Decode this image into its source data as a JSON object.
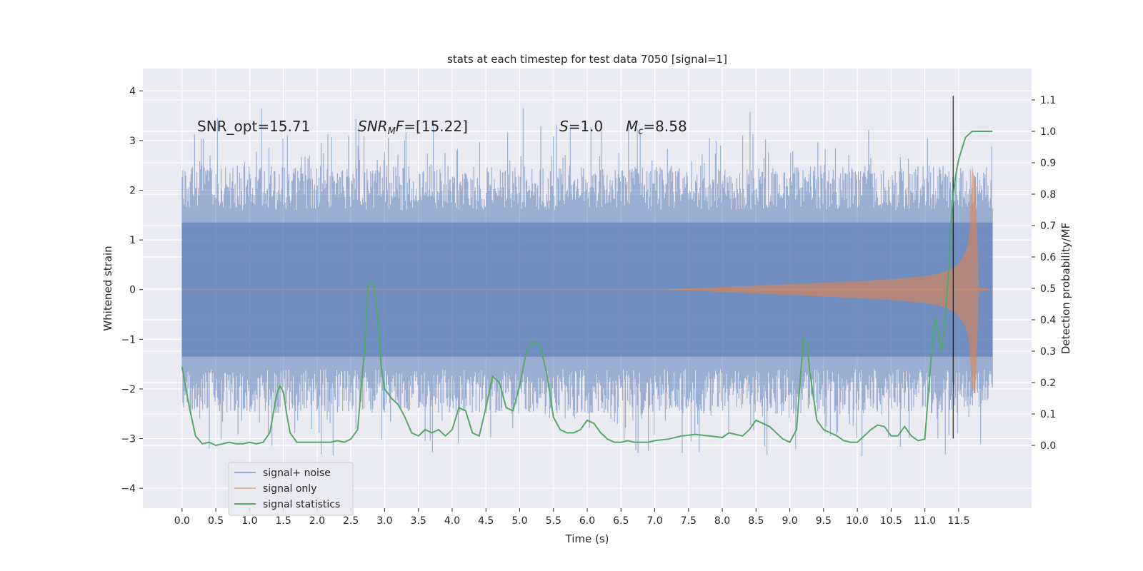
{
  "chart_data": {
    "type": "line",
    "title": "stats at each timestep for test data 7050 [signal=1]",
    "xlabel": "Time (s)",
    "ylabel_left": "Whitened strain",
    "ylabel_right": "Detection probability/MF",
    "xlim": [
      -0.58,
      12.58
    ],
    "ylim_left": [
      -4.4,
      4.45
    ],
    "ylim_right": [
      -0.2,
      1.2
    ],
    "x_ticks": [
      0.0,
      0.5,
      1.0,
      1.5,
      2.0,
      2.5,
      3.0,
      3.5,
      4.0,
      4.5,
      5.0,
      5.5,
      6.0,
      6.5,
      7.0,
      7.5,
      8.0,
      8.5,
      9.0,
      9.5,
      10.0,
      10.5,
      11.0,
      11.5
    ],
    "x_tick_labels": [
      "0.0",
      "0.5",
      "1.0",
      "1.5",
      "2.0",
      "2.5",
      "3.0",
      "3.5",
      "4.0",
      "4.5",
      "5.0",
      "5.5",
      "6.0",
      "6.5",
      "7.0",
      "7.5",
      "8.0",
      "8.5",
      "9.0",
      "9.5",
      "10.0",
      "10.5",
      "11.0",
      "11.5"
    ],
    "y_left_ticks": [
      -4,
      -3,
      -2,
      -1,
      0,
      1,
      2,
      3,
      4
    ],
    "y_left_tick_labels": [
      "−4",
      "−3",
      "−2",
      "−1",
      "0",
      "1",
      "2",
      "3",
      "4"
    ],
    "y_right_ticks": [
      0.0,
      0.1,
      0.2,
      0.3,
      0.4,
      0.5,
      0.6,
      0.7,
      0.8,
      0.9,
      1.0,
      1.1
    ],
    "y_right_tick_labels": [
      "0.0",
      "0.1",
      "0.2",
      "0.3",
      "0.4",
      "0.5",
      "0.6",
      "0.7",
      "0.8",
      "0.9",
      "1.0",
      "1.1"
    ],
    "grid": true,
    "legend_position": "bottom-left",
    "series": [
      {
        "name": "signal+ noise",
        "axis": "left",
        "color": "#4c72b0",
        "x_range": [
          0.0,
          12.0
        ],
        "core_envelope": [
          -1.35,
          1.35
        ],
        "typical_extent": [
          -2.3,
          2.3
        ],
        "max": 4.1,
        "min": -3.8
      },
      {
        "name": "signal only",
        "axis": "left",
        "color": "#dd8452",
        "envelope": {
          "x": [
            0.0,
            7.0,
            7.5,
            8.0,
            8.5,
            9.0,
            9.5,
            10.0,
            10.5,
            11.0,
            11.2,
            11.4,
            11.5,
            11.6,
            11.65,
            11.7,
            11.75,
            11.8,
            11.9,
            12.0
          ],
          "amplitude": [
            0.0,
            0.0,
            0.02,
            0.05,
            0.08,
            0.11,
            0.14,
            0.17,
            0.21,
            0.27,
            0.32,
            0.42,
            0.52,
            0.75,
            1.0,
            2.5,
            2.1,
            0.05,
            0.02,
            0.0
          ]
        }
      },
      {
        "name": "signal statistics",
        "axis": "right",
        "color": "#55a868",
        "x": [
          0.0,
          0.1,
          0.2,
          0.3,
          0.4,
          0.5,
          0.6,
          0.7,
          0.8,
          0.9,
          1.0,
          1.1,
          1.2,
          1.3,
          1.35,
          1.4,
          1.45,
          1.5,
          1.55,
          1.6,
          1.7,
          1.8,
          1.9,
          2.0,
          2.1,
          2.2,
          2.3,
          2.4,
          2.5,
          2.6,
          2.7,
          2.75,
          2.8,
          2.85,
          2.9,
          2.95,
          3.0,
          3.1,
          3.2,
          3.3,
          3.4,
          3.5,
          3.6,
          3.7,
          3.8,
          3.9,
          4.0,
          4.1,
          4.2,
          4.3,
          4.4,
          4.5,
          4.6,
          4.7,
          4.8,
          4.9,
          5.0,
          5.1,
          5.2,
          5.3,
          5.4,
          5.5,
          5.6,
          5.7,
          5.8,
          5.9,
          6.0,
          6.1,
          6.2,
          6.3,
          6.4,
          6.5,
          6.6,
          6.7,
          6.8,
          6.9,
          7.0,
          7.2,
          7.4,
          7.6,
          7.8,
          8.0,
          8.1,
          8.2,
          8.3,
          8.4,
          8.5,
          8.6,
          8.7,
          8.8,
          8.9,
          9.0,
          9.1,
          9.2,
          9.25,
          9.3,
          9.4,
          9.5,
          9.6,
          9.7,
          9.8,
          9.9,
          10.0,
          10.1,
          10.2,
          10.3,
          10.4,
          10.5,
          10.6,
          10.7,
          10.8,
          10.9,
          11.0,
          11.1,
          11.15,
          11.2,
          11.25,
          11.3,
          11.35,
          11.4,
          11.45,
          11.5,
          11.6,
          11.7,
          11.8,
          11.9,
          12.0
        ],
        "values": [
          0.25,
          0.13,
          0.03,
          0.005,
          0.01,
          0.0,
          0.005,
          0.01,
          0.005,
          0.005,
          0.01,
          0.005,
          0.01,
          0.04,
          0.1,
          0.16,
          0.19,
          0.17,
          0.1,
          0.04,
          0.01,
          0.01,
          0.01,
          0.01,
          0.01,
          0.01,
          0.015,
          0.01,
          0.02,
          0.05,
          0.3,
          0.51,
          0.52,
          0.5,
          0.4,
          0.25,
          0.18,
          0.15,
          0.13,
          0.09,
          0.04,
          0.03,
          0.05,
          0.04,
          0.05,
          0.03,
          0.05,
          0.12,
          0.11,
          0.04,
          0.03,
          0.12,
          0.22,
          0.2,
          0.12,
          0.11,
          0.19,
          0.3,
          0.33,
          0.32,
          0.23,
          0.09,
          0.05,
          0.04,
          0.04,
          0.05,
          0.08,
          0.07,
          0.04,
          0.02,
          0.01,
          0.01,
          0.015,
          0.01,
          0.01,
          0.01,
          0.015,
          0.02,
          0.03,
          0.035,
          0.03,
          0.025,
          0.04,
          0.035,
          0.03,
          0.05,
          0.08,
          0.07,
          0.06,
          0.04,
          0.02,
          0.01,
          0.05,
          0.34,
          0.33,
          0.23,
          0.08,
          0.05,
          0.04,
          0.03,
          0.015,
          0.01,
          0.01,
          0.03,
          0.05,
          0.065,
          0.06,
          0.03,
          0.03,
          0.06,
          0.03,
          0.015,
          0.02,
          0.3,
          0.41,
          0.35,
          0.3,
          0.4,
          0.55,
          0.75,
          0.85,
          0.91,
          0.98,
          1.0,
          1.0,
          1.0,
          1.0
        ]
      }
    ],
    "vertical_line": {
      "x": 11.42,
      "y_range": [
        -3.0,
        3.9
      ],
      "color": "#000000"
    },
    "annotations": [
      {
        "text": "SNR_opt=15.71",
        "x": 0.2,
        "y": 3.2
      },
      {
        "text": "SNR_MF=[15.22]",
        "x": 2.6,
        "y": 3.2
      },
      {
        "text": "S=1.0",
        "x": 5.6,
        "y": 3.2
      },
      {
        "text": "M_c=8.58",
        "x": 6.6,
        "y": 3.2
      }
    ]
  },
  "legend": [
    {
      "label": "signal+ noise",
      "color": "#4c72b0",
      "opacity": 0.55
    },
    {
      "label": "signal only",
      "color": "#dd8452",
      "opacity": 0.55
    },
    {
      "label": "signal statistics",
      "color": "#55a868",
      "opacity": 1
    }
  ],
  "annotations_display": {
    "snr_opt": "SNR_opt=15.71",
    "snr_mf_base": "SNR",
    "snr_mf_sub": "M",
    "snr_mf_tail": "F",
    "snr_mf_value": "=[15.22]",
    "s_name": "S",
    "s_value": "=1.0",
    "mc_name": "M",
    "mc_sub": "c",
    "mc_value": "=8.58"
  },
  "colors": {
    "background": "#eaeaf2",
    "grid": "#ffffff",
    "text": "#262626"
  }
}
